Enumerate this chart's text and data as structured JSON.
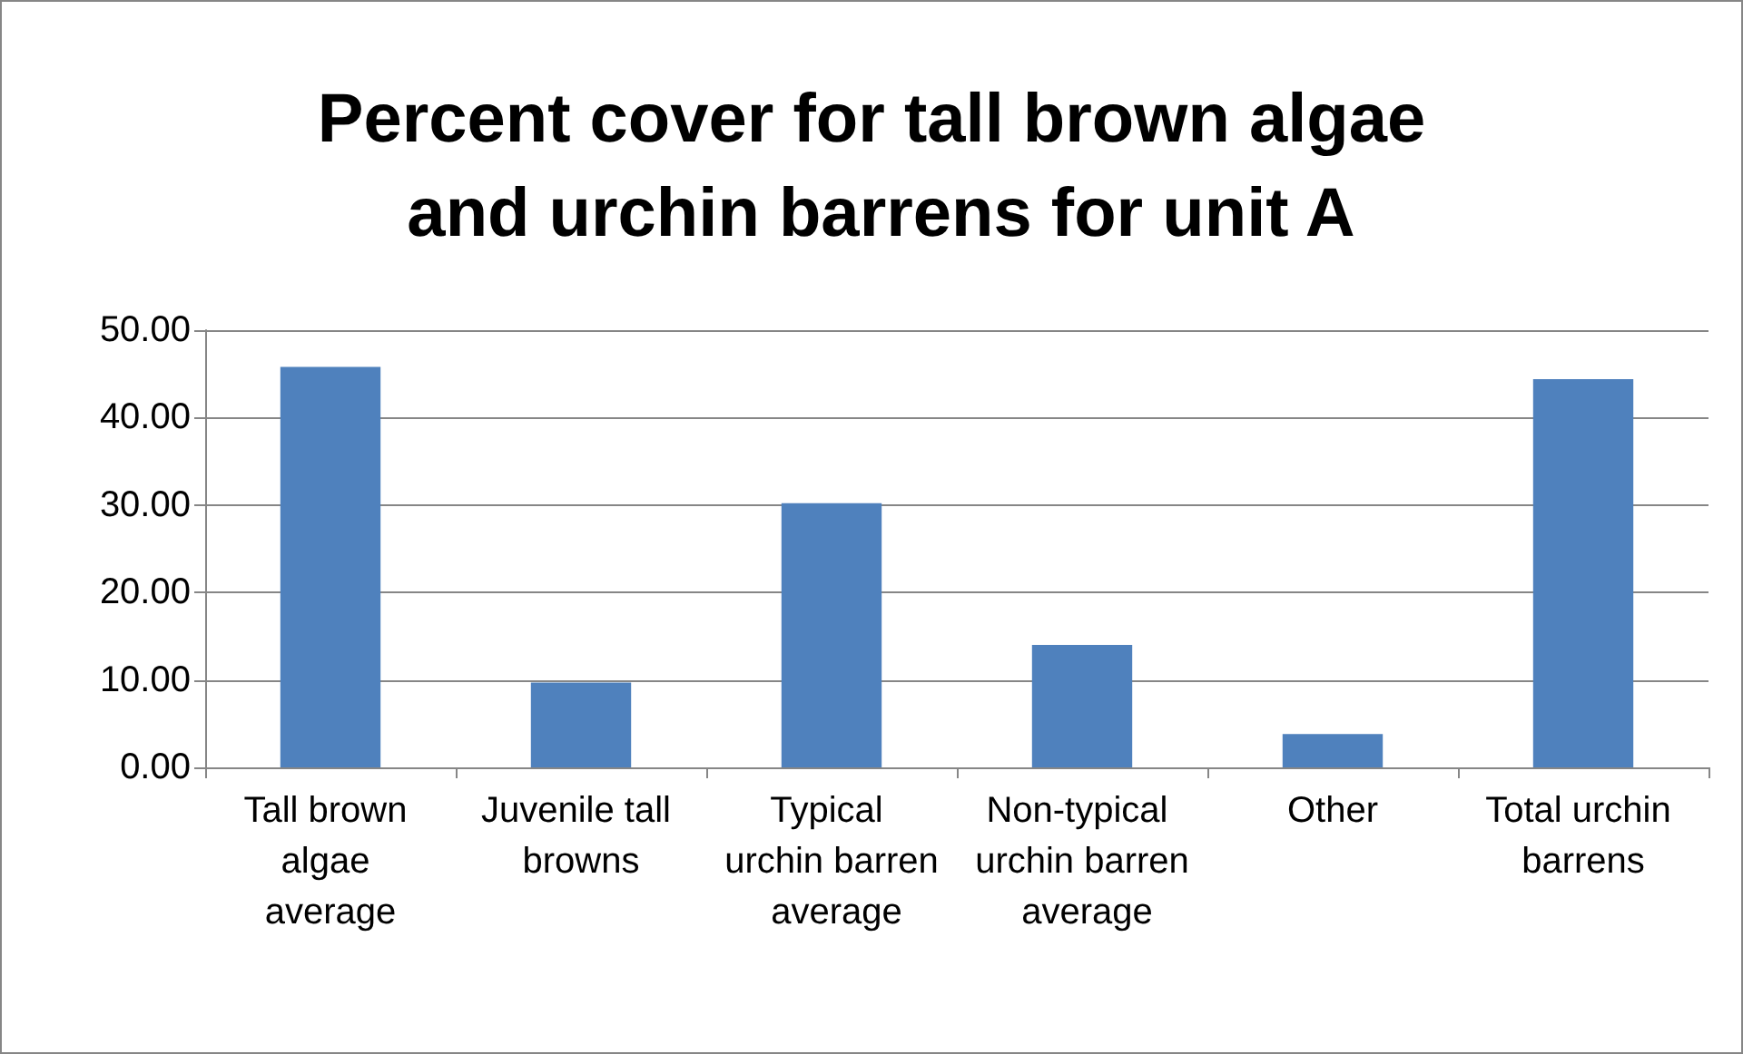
{
  "chart_data": {
    "type": "bar",
    "title": "Percent cover for tall brown algae and urchin barrens for unit A",
    "categories": [
      "Tall brown algae average",
      "Juvenile tall browns",
      "Typical urchin barren average",
      "Non-typical urchin barren average",
      "Other",
      "Total urchin barrens"
    ],
    "values": [
      45.8,
      9.7,
      30.2,
      14.0,
      3.8,
      44.4
    ],
    "color": "#4f81bd",
    "ylim": [
      0,
      50
    ],
    "yticks": [
      {
        "value": 0,
        "label": "0.00"
      },
      {
        "value": 10,
        "label": "10.00"
      },
      {
        "value": 20,
        "label": "20.00"
      },
      {
        "value": 30,
        "label": "30.00"
      },
      {
        "value": 40,
        "label": "40.00"
      },
      {
        "value": 50,
        "label": "50.00"
      }
    ],
    "grid": "y"
  }
}
